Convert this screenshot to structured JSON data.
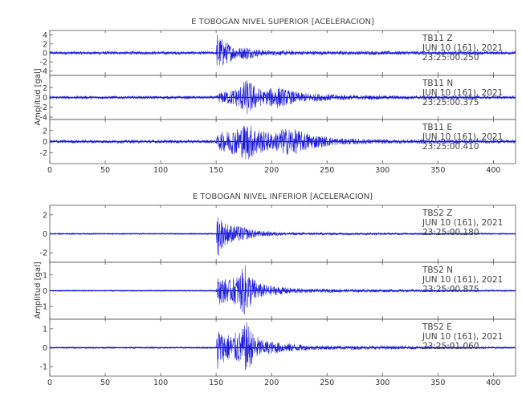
{
  "chart_data": [
    {
      "type": "line",
      "title": "E TOBOGAN NIVEL SUPERIOR [ACELERACION]",
      "ylabel": "Amplitud [gal]",
      "xlim": [
        0,
        420
      ],
      "xticks": [
        0,
        50,
        100,
        150,
        200,
        250,
        300,
        350,
        400
      ],
      "line_color": "#1a1adc",
      "traces": [
        {
          "station": "TB11",
          "component": "Z",
          "date": "JUN 10 (161), 2021",
          "time": "23:25:00.250",
          "ylim": [
            -5,
            5
          ],
          "yticks": [
            4,
            2,
            0,
            -2,
            -4
          ],
          "onset": 151,
          "envelope": [
            [
              0,
              0.35
            ],
            [
              150,
              0.35
            ],
            [
              151,
              4.8
            ],
            [
              153,
              3.6
            ],
            [
              158,
              2.8
            ],
            [
              165,
              1.6
            ],
            [
              172,
              1.2
            ],
            [
              178,
              1.6
            ],
            [
              183,
              1.0
            ],
            [
              195,
              0.6
            ],
            [
              230,
              0.45
            ],
            [
              420,
              0.35
            ]
          ]
        },
        {
          "station": "TB11",
          "component": "N",
          "date": "JUN 10 (161), 2021",
          "time": "23:25:00.375",
          "ylim": [
            -4.5,
            4.5
          ],
          "yticks": [
            2,
            0,
            -2,
            -4
          ],
          "onset": 151,
          "envelope": [
            [
              0,
              0.3
            ],
            [
              150,
              0.3
            ],
            [
              153,
              1.0
            ],
            [
              162,
              1.5
            ],
            [
              170,
              2.0
            ],
            [
              177,
              3.8
            ],
            [
              181,
              3.2
            ],
            [
              188,
              2.0
            ],
            [
              194,
              1.3
            ],
            [
              197,
              1.8
            ],
            [
              205,
              2.3
            ],
            [
              212,
              1.7
            ],
            [
              225,
              1.0
            ],
            [
              240,
              0.8
            ],
            [
              270,
              0.5
            ],
            [
              300,
              0.4
            ],
            [
              420,
              0.3
            ]
          ]
        },
        {
          "station": "TB11",
          "component": "E",
          "date": "JUN 10 (161), 2021",
          "time": "23:25:00.410",
          "ylim": [
            -4,
            4
          ],
          "yticks": [
            2,
            0,
            -2
          ],
          "onset": 151,
          "envelope": [
            [
              0,
              0.3
            ],
            [
              150,
              0.3
            ],
            [
              152,
              1.6
            ],
            [
              160,
              2.0
            ],
            [
              170,
              2.6
            ],
            [
              178,
              3.5
            ],
            [
              184,
              2.8
            ],
            [
              192,
              2.0
            ],
            [
              202,
              1.5
            ],
            [
              210,
              2.4
            ],
            [
              218,
              2.5
            ],
            [
              228,
              1.8
            ],
            [
              240,
              1.2
            ],
            [
              260,
              0.6
            ],
            [
              300,
              0.4
            ],
            [
              420,
              0.3
            ]
          ]
        }
      ]
    },
    {
      "type": "line",
      "title": "E TOBOGAN NIVEL INFERIOR [ACELERACION]",
      "ylabel": "Amplitud [gal]",
      "xlim": [
        0,
        420
      ],
      "xticks": [
        0,
        50,
        100,
        150,
        200,
        250,
        300,
        350,
        400
      ],
      "line_color": "#1a1adc",
      "traces": [
        {
          "station": "TBS2",
          "component": "Z",
          "date": "JUN 10 (161), 2021",
          "time": "23:25:00.180",
          "ylim": [
            -3,
            3
          ],
          "yticks": [
            2,
            0,
            -2
          ],
          "onset": 151,
          "envelope": [
            [
              0,
              0.07
            ],
            [
              150,
              0.07
            ],
            [
              151,
              2.8
            ],
            [
              153,
              2.0
            ],
            [
              157,
              1.3
            ],
            [
              165,
              0.9
            ],
            [
              173,
              0.8
            ],
            [
              178,
              0.6
            ],
            [
              190,
              0.3
            ],
            [
              215,
              0.15
            ],
            [
              420,
              0.07
            ]
          ]
        },
        {
          "station": "TBS2",
          "component": "N",
          "date": "JUN 10 (161), 2021",
          "time": "23:25:00.875",
          "ylim": [
            -1.8,
            1.8
          ],
          "yticks": [
            1,
            0,
            -1
          ],
          "onset": 151,
          "envelope": [
            [
              0,
              0.04
            ],
            [
              150,
              0.04
            ],
            [
              152,
              0.9
            ],
            [
              162,
              0.7
            ],
            [
              170,
              1.0
            ],
            [
              176,
              1.7
            ],
            [
              181,
              1.0
            ],
            [
              188,
              0.5
            ],
            [
              200,
              0.3
            ],
            [
              230,
              0.12
            ],
            [
              420,
              0.04
            ]
          ]
        },
        {
          "station": "TBS2",
          "component": "E",
          "date": "JUN 10 (161), 2021",
          "time": "23:25:01.060",
          "ylim": [
            -1.5,
            1.5
          ],
          "yticks": [
            1,
            0,
            -1
          ],
          "onset": 151,
          "envelope": [
            [
              0,
              0.04
            ],
            [
              150,
              0.04
            ],
            [
              151,
              1.4
            ],
            [
              155,
              0.8
            ],
            [
              163,
              0.7
            ],
            [
              172,
              0.9
            ],
            [
              178,
              1.4
            ],
            [
              183,
              0.8
            ],
            [
              192,
              0.4
            ],
            [
              205,
              0.3
            ],
            [
              235,
              0.12
            ],
            [
              420,
              0.04
            ]
          ]
        }
      ]
    }
  ]
}
